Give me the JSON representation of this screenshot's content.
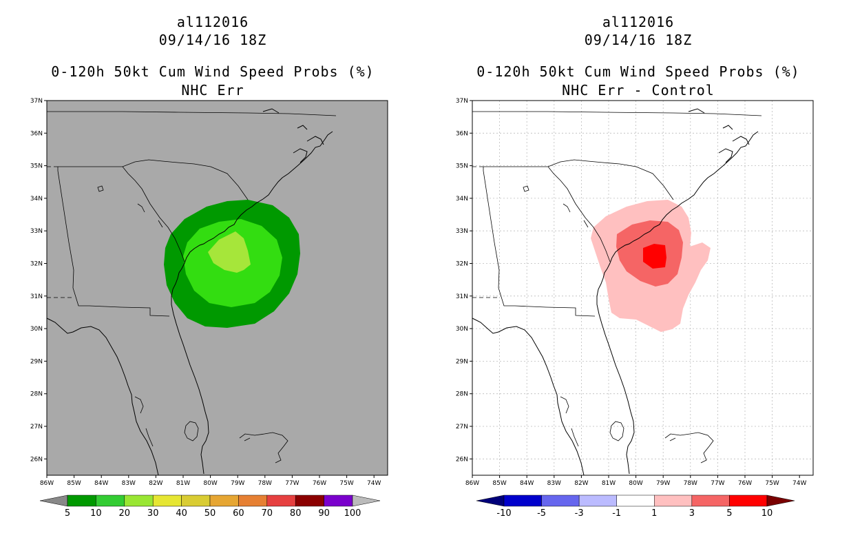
{
  "left": {
    "storm_id": "al112016",
    "datetime": "09/14/16 18Z",
    "product": "0-120h 50kt Cum Wind Speed Probs (%)",
    "subtitle": "NHC Err",
    "background": "#a9a9a9",
    "colorbar": {
      "labels": [
        "5",
        "10",
        "20",
        "30",
        "40",
        "50",
        "60",
        "70",
        "80",
        "90",
        "100"
      ],
      "colors": [
        "#009900",
        "#33cc33",
        "#99e633",
        "#e6e633",
        "#d9cc33",
        "#e6a633",
        "#e68033",
        "#e64040",
        "#8b0000",
        "#7a00cc"
      ],
      "end_colors": [
        "#888888",
        "#bbbbbb"
      ]
    },
    "contours": [
      {
        "level": "5-10",
        "color": "#009900"
      },
      {
        "level": "10-20",
        "color": "#33dd11"
      },
      {
        "level": "20-30",
        "color": "#a6e63a"
      }
    ]
  },
  "right": {
    "storm_id": "al112016",
    "datetime": "09/14/16 18Z",
    "product": "0-120h 50kt Cum Wind Speed Probs (%)",
    "subtitle": "NHC Err - Control",
    "background": "#ffffff",
    "colorbar": {
      "labels": [
        "-10",
        "-5",
        "-3",
        "-1",
        "1",
        "3",
        "5",
        "10"
      ],
      "colors": [
        "#0000cc",
        "#6666ee",
        "#bbbbff",
        "#ffffff",
        "#ffc0c0",
        "#f56565",
        "#ff0000"
      ],
      "end_colors": [
        "#00007a",
        "#7a0000"
      ]
    },
    "contours": [
      {
        "level": "1-3",
        "color": "#ffc0c0"
      },
      {
        "level": "3-5",
        "color": "#f56565"
      },
      {
        "level": "5-10",
        "color": "#ff0000"
      }
    ]
  },
  "axes": {
    "lat_labels": [
      "37N",
      "36N",
      "35N",
      "34N",
      "33N",
      "32N",
      "31N",
      "30N",
      "29N",
      "28N",
      "27N",
      "26N"
    ],
    "lon_labels": [
      "86W",
      "85W",
      "84W",
      "83W",
      "82W",
      "81W",
      "80W",
      "79W",
      "78W",
      "77W",
      "76W",
      "75W",
      "74W"
    ]
  }
}
